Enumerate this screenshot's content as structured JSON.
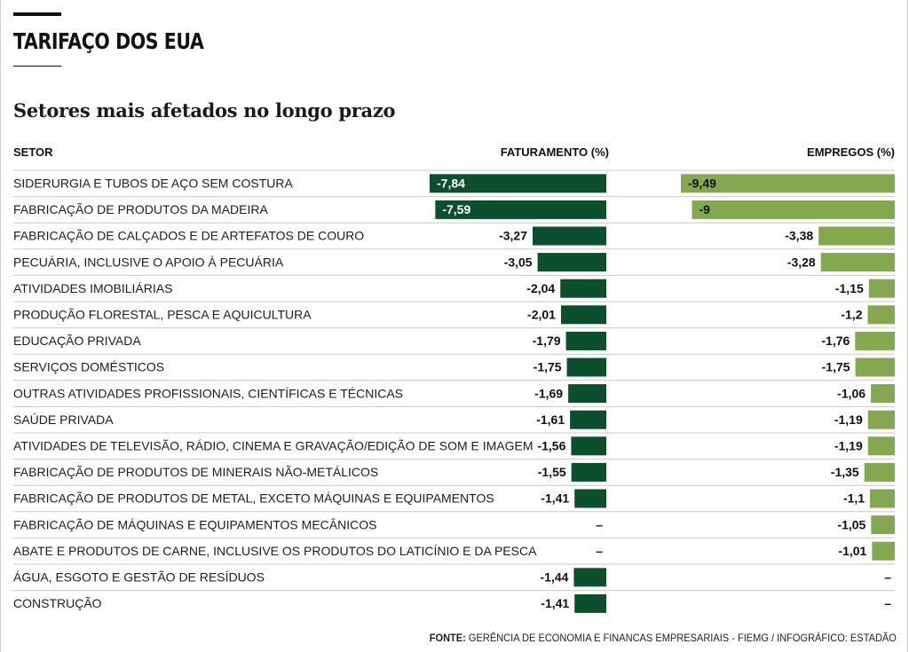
{
  "header": {
    "kicker": "TARIFAÇO DOS EUA",
    "title": "Setores mais afetados no longo prazo"
  },
  "columns": {
    "sector": "SETOR",
    "revenue": "FATURAMENTO (%)",
    "jobs": "EMPREGOS (%)"
  },
  "source": {
    "label": "FONTE:",
    "text": "GERÊNCIA DE ECONOMIA E FINANCAS EMPRESARIAIS - FIEMG / INFOGRÁFICO: ESTADÃO"
  },
  "colors": {
    "revenue_bar": "#0b4f2e",
    "jobs_bar": "#84a84f",
    "row_rule": "#c9c9c9"
  },
  "missing_label": "–",
  "chart_data": {
    "type": "bar",
    "title": "Setores mais afetados no longo prazo",
    "categories": [
      "SIDERURGIA E TUBOS DE AÇO SEM COSTURA",
      "FABRICAÇÃO DE PRODUTOS DA MADEIRA",
      "FABRICAÇÃO DE CALÇADOS E DE ARTEFATOS DE COURO",
      "PECUÁRIA, INCLUSIVE O APOIO À PECUÁRIA",
      "ATIVIDADES IMOBILIÁRIAS",
      "PRODUÇÃO FLORESTAL, PESCA E AQUICULTURA",
      "EDUCAÇÃO PRIVADA",
      "SERVIÇOS DOMÉSTICOS",
      "OUTRAS ATIVIDADES PROFISSIONAIS, CIENTÍFICAS E TÉCNICAS",
      "SAÚDE PRIVADA",
      "ATIVIDADES DE TELEVISÃO, RÁDIO, CINEMA E GRAVAÇÃO/EDIÇÃO DE SOM E IMAGEM",
      "FABRICAÇÃO DE PRODUTOS DE MINERAIS NÃO-METÁLICOS",
      "FABRICAÇÃO DE PRODUTOS DE METAL, EXCETO MÁQUINAS E EQUIPAMENTOS",
      "FABRICAÇÃO DE MÁQUINAS E EQUIPAMENTOS MECÂNICOS",
      "ABATE E PRODUTOS DE CARNE, INCLUSIVE OS PRODUTOS DO LATICÍNIO E DA PESCA",
      "ÁGUA, ESGOTO E GESTÃO DE RESÍDUOS",
      "CONSTRUÇÃO"
    ],
    "series": [
      {
        "name": "FATURAMENTO (%)",
        "values": [
          -7.84,
          -7.59,
          -3.27,
          -3.05,
          -2.04,
          -2.01,
          -1.79,
          -1.75,
          -1.69,
          -1.61,
          -1.56,
          -1.55,
          -1.41,
          null,
          null,
          -1.44,
          -1.41
        ],
        "labels": [
          "-7,84",
          "-7,59",
          "-3,27",
          "-3,05",
          "-2,04",
          "-2,01",
          "-1,79",
          "-1,75",
          "-1,69",
          "-1,61",
          "-1,56",
          "-1,55",
          "-1,41",
          "–",
          "–",
          "-1,44",
          "-1,41"
        ]
      },
      {
        "name": "EMPREGOS (%)",
        "values": [
          -9.49,
          -9,
          -3.38,
          -3.28,
          -1.15,
          -1.2,
          -1.76,
          -1.75,
          -1.06,
          -1.19,
          -1.19,
          -1.35,
          -1.1,
          -1.05,
          -1.01,
          null,
          null
        ],
        "labels": [
          "-9,49",
          "-9",
          "-3,38",
          "-3,28",
          "-1,15",
          "-1,2",
          "-1,76",
          "-1,75",
          "-1,06",
          "-1,19",
          "-1,19",
          "-1,35",
          "-1,1",
          "-1,05",
          "-1,01",
          "–",
          "–"
        ]
      }
    ],
    "xlim_revenue": [
      -7.84,
      0
    ],
    "xlim_jobs": [
      -9.49,
      0
    ],
    "grid": false,
    "legend": "none"
  }
}
